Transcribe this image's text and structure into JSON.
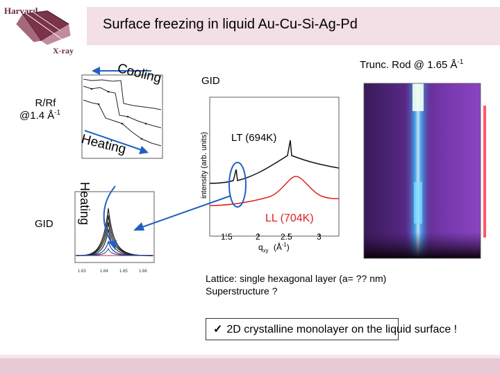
{
  "logo": {
    "top_text": "Harvard",
    "bottom_text": "X-ray",
    "color": "#6b2c3e"
  },
  "title": "Surface freezing in liquid Au-Cu-Si-Ag-Pd",
  "labels": {
    "cooling": "Cooling",
    "heating_top": "Heating",
    "heating_side": "Heating",
    "rrf_line1": "R/Rf",
    "rrf_line2_prefix": "@1.4 Å",
    "rrf_line2_sup": "-1",
    "gid_left": "GID",
    "gid_center": "GID",
    "trunc_prefix": "Trunc. Rod @ 1.65 Å",
    "trunc_sup": "-1",
    "lt": "LT (694K)",
    "ll": "LL (704K)",
    "center_ylabel": "intensity (arb. units)",
    "center_xlabel_main": "q",
    "center_xlabel_sub": "xy",
    "center_xlabel_unit": "(Å",
    "center_xlabel_unit_sup": "-1",
    "center_xlabel_close": ")",
    "center_xticks": [
      "1.5",
      "2",
      "2.5",
      "3"
    ]
  },
  "notes": {
    "line1": "Lattice: single hexagonal layer (a= ?? nm)",
    "line2": "Superstructure ?"
  },
  "conclusion": "2D crystalline monolayer on the liquid surface !",
  "colors": {
    "title_band": "#f3dfe6",
    "accent_blue": "#2060c0",
    "ll_red": "#e02020",
    "lt_black": "#111111"
  }
}
